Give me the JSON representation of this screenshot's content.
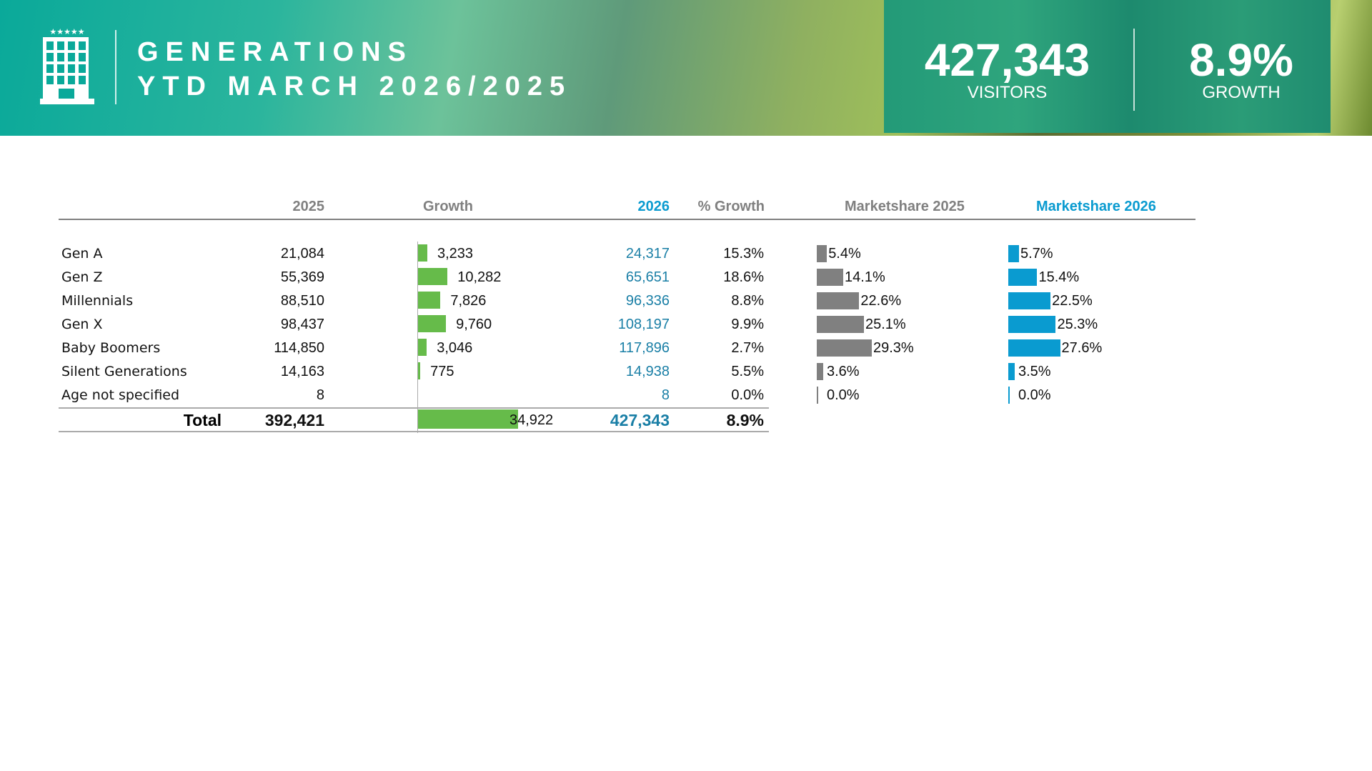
{
  "header": {
    "title_line1": "GENERATIONS",
    "title_line2": "YTD MARCH 2026/2025",
    "logo_icon": "hotel-building-icon"
  },
  "kpis": {
    "visitors_value": "427,343",
    "visitors_label": "VISITORS",
    "growth_value": "8.9%",
    "growth_label": "GROWTH"
  },
  "table": {
    "columns": {
      "y2025": "2025",
      "growth": "Growth",
      "y2026": "2026",
      "pct_growth": "% Growth",
      "ms2025": "Marketshare 2025",
      "ms2026": "Marketshare 2026"
    },
    "colors": {
      "growth_bar": "#66bb4a",
      "ms2025_bar": "#808080",
      "ms2026_bar": "#0a9bd0",
      "y2026_text": "#1a7fa6"
    },
    "rows": [
      {
        "label": "Gen A",
        "y2025": "21,084",
        "growth": 3233,
        "growth_label": "3,233",
        "y2026": "24,317",
        "pct_growth": "15.3%",
        "ms2025": 5.4,
        "ms2025_label": "5.4%",
        "ms2026": 5.7,
        "ms2026_label": "5.7%"
      },
      {
        "label": "Gen Z",
        "y2025": "55,369",
        "growth": 10282,
        "growth_label": "10,282",
        "y2026": "65,651",
        "pct_growth": "18.6%",
        "ms2025": 14.1,
        "ms2025_label": "14.1%",
        "ms2026": 15.4,
        "ms2026_label": "15.4%"
      },
      {
        "label": "Millennials",
        "y2025": "88,510",
        "growth": 7826,
        "growth_label": "7,826",
        "y2026": "96,336",
        "pct_growth": "8.8%",
        "ms2025": 22.6,
        "ms2025_label": "22.6%",
        "ms2026": 22.5,
        "ms2026_label": "22.5%"
      },
      {
        "label": "Gen X",
        "y2025": "98,437",
        "growth": 9760,
        "growth_label": "9,760",
        "y2026": "108,197",
        "pct_growth": "9.9%",
        "ms2025": 25.1,
        "ms2025_label": "25.1%",
        "ms2026": 25.3,
        "ms2026_label": "25.3%"
      },
      {
        "label": "Baby Boomers",
        "y2025": "114,850",
        "growth": 3046,
        "growth_label": "3,046",
        "y2026": "117,896",
        "pct_growth": "2.7%",
        "ms2025": 29.3,
        "ms2025_label": "29.3%",
        "ms2026": 27.6,
        "ms2026_label": "27.6%"
      },
      {
        "label": "Silent Generations",
        "y2025": "14,163",
        "growth": 775,
        "growth_label": "775",
        "y2026": "14,938",
        "pct_growth": "5.5%",
        "ms2025": 3.6,
        "ms2025_label": "3.6%",
        "ms2026": 3.5,
        "ms2026_label": "3.5%"
      },
      {
        "label": "Age not specified",
        "y2025": "8",
        "growth": 0,
        "growth_label": "",
        "y2026": "8",
        "pct_growth": "0.0%",
        "ms2025": 0,
        "ms2025_label": "0.0%",
        "ms2026": 0,
        "ms2026_label": "0.0%"
      }
    ],
    "total": {
      "label": "Total",
      "y2025": "392,421",
      "growth": 34922,
      "growth_label": "34,922",
      "y2026": "427,343",
      "pct_growth": "8.9%"
    }
  }
}
